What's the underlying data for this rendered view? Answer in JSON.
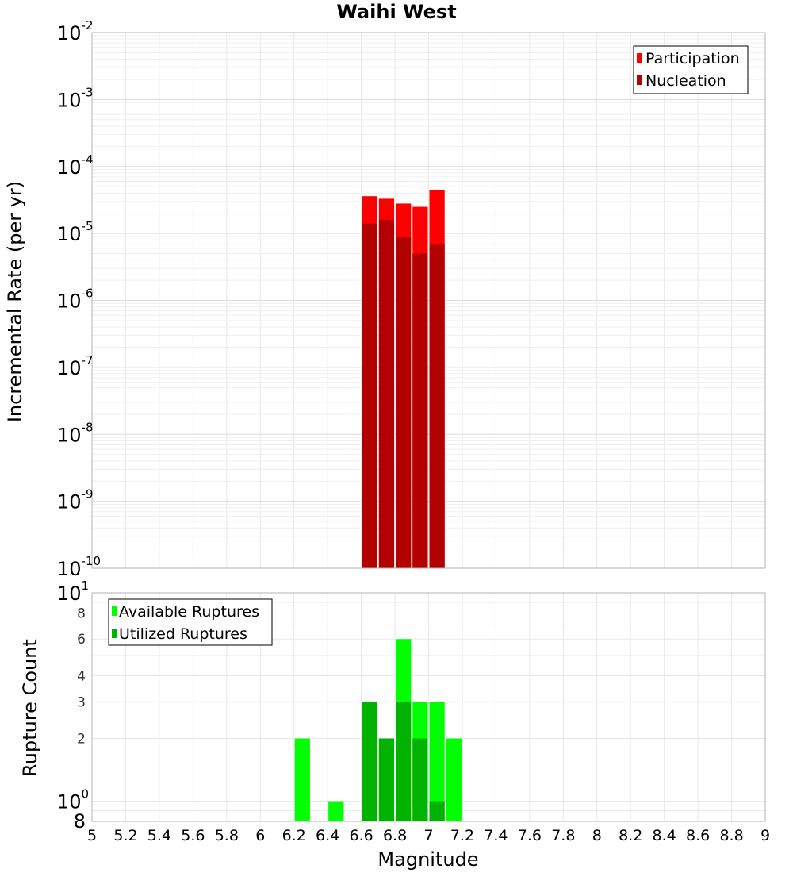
{
  "chart_data": [
    {
      "type": "bar",
      "title": "Waihi West",
      "ylabel": "Incremental Rate (per yr)",
      "xlabel": "",
      "yscale": "log",
      "ylim": [
        1e-10,
        0.01
      ],
      "xlim": [
        5,
        9
      ],
      "legend_position": "top-right",
      "x": [
        6.65,
        6.75,
        6.85,
        6.95,
        7.05
      ],
      "series": [
        {
          "name": "Participation",
          "color": "#ff0000",
          "values": [
            3.6e-05,
            3.3e-05,
            2.8e-05,
            2.5e-05,
            4.5e-05
          ]
        },
        {
          "name": "Nucleation",
          "color": "#b30000",
          "values": [
            1.4e-05,
            1.6e-05,
            9e-06,
            5e-06,
            6.8e-06
          ]
        }
      ],
      "y_major_ticks": [
        {
          "base": "10",
          "exp": "-2"
        },
        {
          "base": "10",
          "exp": "-3"
        },
        {
          "base": "10",
          "exp": "-4"
        },
        {
          "base": "10",
          "exp": "-5"
        },
        {
          "base": "10",
          "exp": "-6"
        },
        {
          "base": "10",
          "exp": "-7"
        },
        {
          "base": "10",
          "exp": "-8"
        },
        {
          "base": "10",
          "exp": "-9"
        },
        {
          "base": "10",
          "exp": "-10"
        }
      ]
    },
    {
      "type": "bar",
      "ylabel": "Rupture Count",
      "xlabel": "Magnitude",
      "yscale": "log",
      "ylim": [
        0.8,
        10
      ],
      "xlim": [
        5,
        9
      ],
      "legend_position": "top-left",
      "x": [
        6.25,
        6.45,
        6.65,
        6.75,
        6.85,
        6.95,
        7.05,
        7.15
      ],
      "series": [
        {
          "name": "Available Ruptures",
          "color": "#00ff00",
          "values": [
            2,
            1,
            3,
            2,
            6,
            3,
            3,
            2
          ]
        },
        {
          "name": "Utilized Ruptures",
          "color": "#00b300",
          "values": [
            0,
            0,
            3,
            2,
            3,
            2,
            1,
            0
          ]
        }
      ],
      "y_major_ticks": [
        {
          "base": "10",
          "exp": "1"
        },
        {
          "base": "10",
          "exp": "0"
        }
      ],
      "y_minor_ticks": [
        "8",
        "6",
        "4",
        "3",
        "2",
        "8"
      ],
      "x_tick_labels": [
        "5",
        "5.2",
        "5.4",
        "5.6",
        "5.8",
        "6",
        "6.2",
        "6.4",
        "6.6",
        "6.8",
        "7",
        "7.2",
        "7.4",
        "7.6",
        "7.8",
        "8",
        "8.2",
        "8.4",
        "8.6",
        "8.8",
        "9"
      ]
    }
  ]
}
